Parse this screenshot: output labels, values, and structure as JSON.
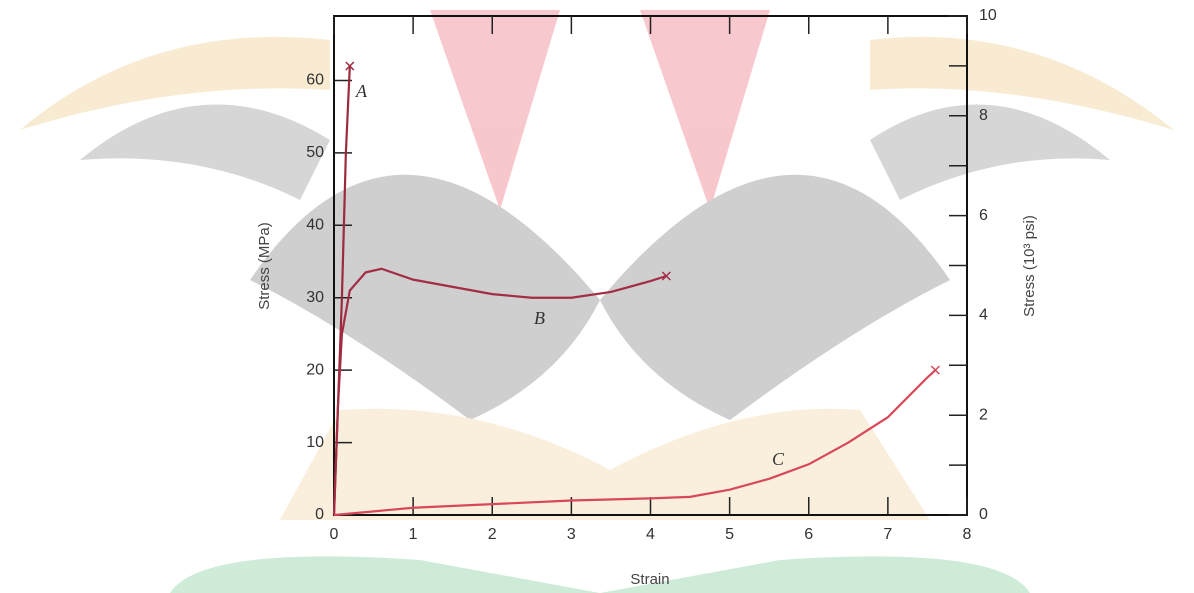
{
  "chart_data": {
    "type": "line",
    "x_label": "Strain",
    "y_label": "Stress (MPa)",
    "y2_label": "Stress (10³ psi)",
    "xlim": [
      0,
      8
    ],
    "xticks": [
      0,
      1,
      2,
      3,
      4,
      5,
      6,
      7,
      8
    ],
    "ylim": [
      0,
      68.9
    ],
    "yticks": [
      0,
      10,
      20,
      30,
      40,
      50,
      60
    ],
    "y2lim": [
      0,
      10
    ],
    "y2ticks": [
      0,
      2,
      4,
      6,
      8,
      10
    ],
    "y2minor_ticks": [
      1,
      3,
      5,
      7,
      9
    ],
    "series": [
      {
        "name": "A",
        "color": "#9c2a3e",
        "x": [
          0,
          0.1,
          0.15,
          0.2
        ],
        "values": [
          0,
          30,
          50,
          62
        ]
      },
      {
        "name": "B",
        "color": "#a32d44",
        "x": [
          0,
          0.05,
          0.1,
          0.2,
          0.4,
          0.6,
          1,
          2,
          2.5,
          3,
          3.5,
          4,
          4.2
        ],
        "values": [
          0,
          15,
          25,
          31,
          33.5,
          34,
          32.5,
          30.5,
          30,
          30,
          30.8,
          32.3,
          33
        ]
      },
      {
        "name": "C",
        "color": "#d8475a",
        "x": [
          0,
          1,
          2,
          3,
          4,
          4.5,
          5,
          5.5,
          6,
          6.5,
          7,
          7.5,
          7.6
        ],
        "values": [
          0,
          1,
          1.5,
          2,
          2.3,
          2.5,
          3.5,
          5,
          7,
          10,
          13.5,
          19,
          20
        ]
      }
    ]
  }
}
